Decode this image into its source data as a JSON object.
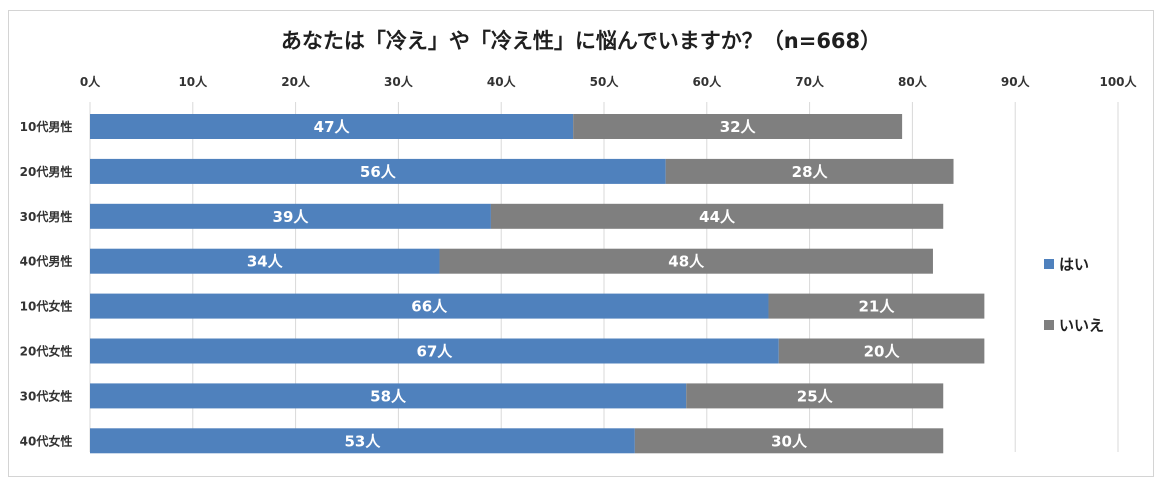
{
  "chart_data": {
    "type": "bar",
    "orientation": "horizontal",
    "stacked": true,
    "title": "あなたは「冷え」や「冷え性」に悩んでいますか？（n=668）",
    "xlabel": "",
    "ylabel": "",
    "xlim": [
      0,
      100
    ],
    "x_ticks": [
      "0人",
      "10人",
      "20人",
      "30人",
      "40人",
      "50人",
      "60人",
      "70人",
      "80人",
      "90人",
      "100人"
    ],
    "categories": [
      "10代男性",
      "20代男性",
      "30代男性",
      "40代男性",
      "10代女性",
      "20代女性",
      "30代女性",
      "40代女性"
    ],
    "series": [
      {
        "name": "はい",
        "color": "#4f81bd",
        "values": [
          47,
          56,
          39,
          34,
          66,
          67,
          58,
          53
        ],
        "labels": [
          "47人",
          "56人",
          "39人",
          "34人",
          "66人",
          "67人",
          "58人",
          "53人"
        ]
      },
      {
        "name": "いいえ",
        "color": "#7f7f7f",
        "values": [
          32,
          28,
          44,
          48,
          21,
          20,
          25,
          30
        ],
        "labels": [
          "32人",
          "28人",
          "44人",
          "48人",
          "21人",
          "20人",
          "25人",
          "30人"
        ]
      }
    ],
    "grid": true,
    "legend_position": "right"
  }
}
